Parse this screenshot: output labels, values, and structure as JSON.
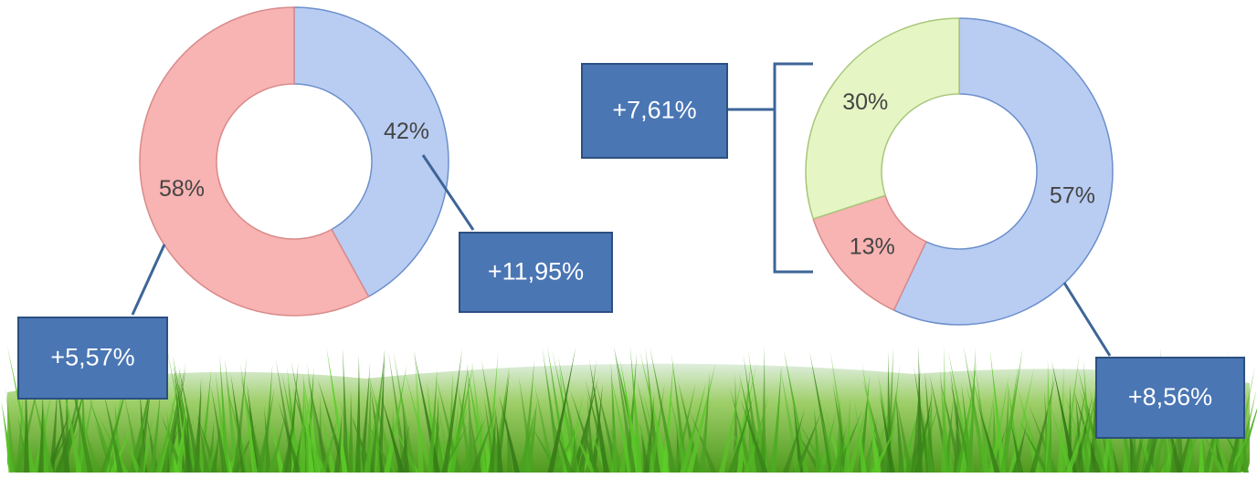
{
  "chart_data": [
    {
      "type": "donut",
      "values": [
        42,
        58
      ],
      "value_labels": [
        "42%",
        "58%"
      ],
      "colors": [
        "#b9cdf3",
        "#f8b3b3"
      ],
      "annotations": [
        "+11,95%",
        "+5,57%"
      ]
    },
    {
      "type": "donut",
      "values": [
        57,
        13,
        30
      ],
      "value_labels": [
        "57%",
        "13%",
        "30%"
      ],
      "colors": [
        "#b9cdf3",
        "#f8b3b3",
        "#e6f5c4"
      ],
      "annotations": [
        "+8,56%",
        "+7,61%"
      ]
    }
  ]
}
